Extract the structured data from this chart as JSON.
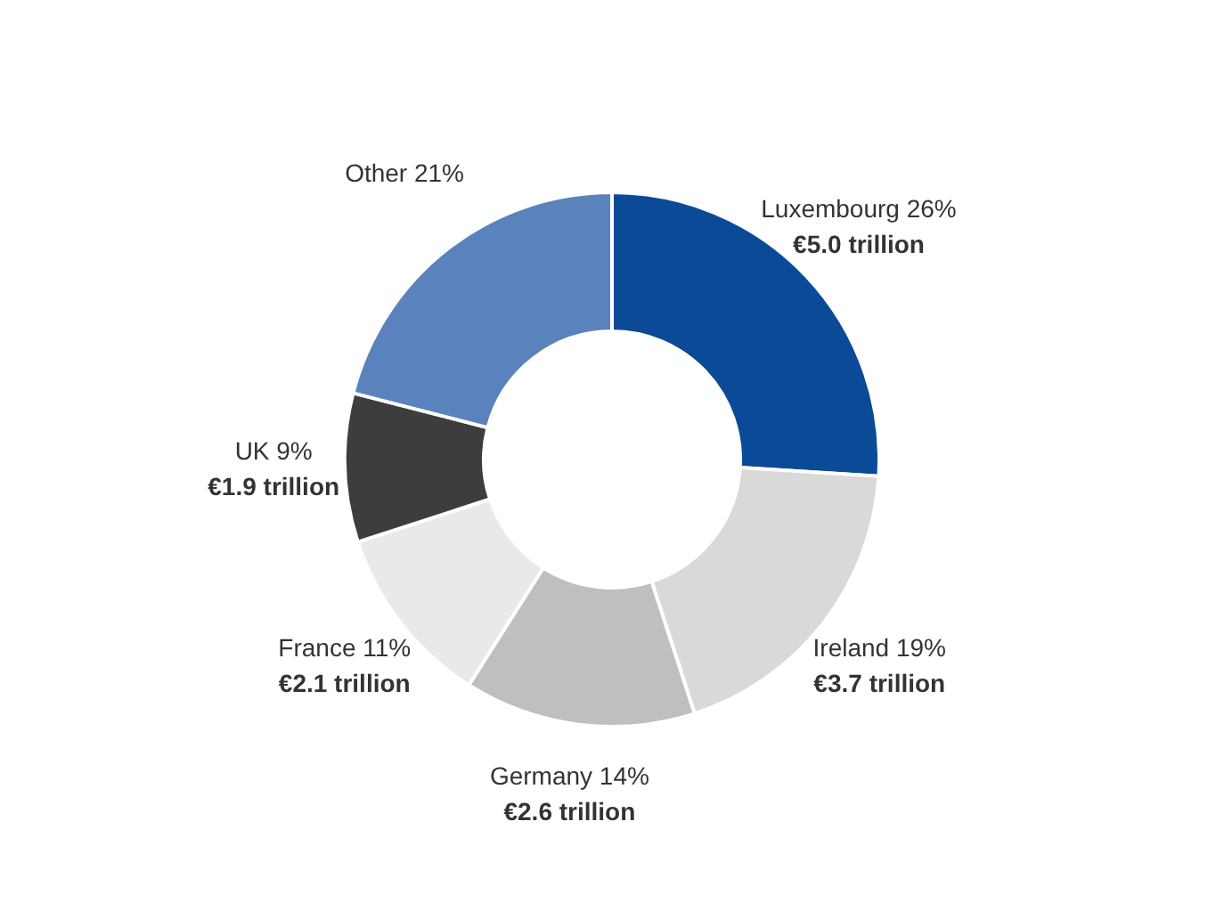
{
  "chart_data": {
    "type": "donut",
    "categories": [
      "Luxembourg",
      "Ireland",
      "Germany",
      "France",
      "UK",
      "Other"
    ],
    "values": [
      26,
      19,
      14,
      11,
      9,
      21
    ],
    "colors": [
      "#0b4a96",
      "#d9d9d9",
      "#bfbfbf",
      "#e9e9e9",
      "#3d3d40",
      "#5a82bd"
    ],
    "value_labels": [
      "26%",
      "19%",
      "14%",
      "11%",
      "9%",
      "21%"
    ],
    "annotations": [
      "€5.0 trillion",
      "€3.7 trillion",
      "€2.6 trillion",
      "€2.1 trillion",
      "€1.9 trillion"
    ],
    "legend": false
  }
}
